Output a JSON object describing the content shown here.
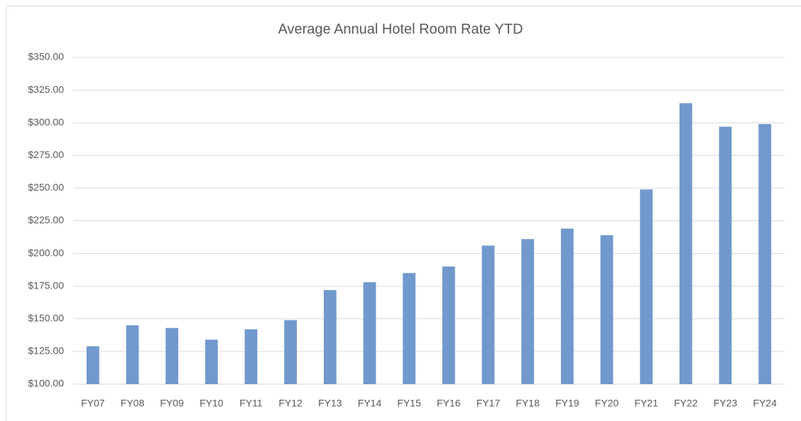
{
  "chart_data": {
    "type": "bar",
    "title": "Average Annual Hotel Room Rate YTD",
    "categories": [
      "FY07",
      "FY08",
      "FY09",
      "FY10",
      "FY11",
      "FY12",
      "FY13",
      "FY14",
      "FY15",
      "FY16",
      "FY17",
      "FY18",
      "FY19",
      "FY20",
      "FY21",
      "FY22",
      "FY23",
      "FY24"
    ],
    "values": [
      129,
      145,
      143,
      134,
      142,
      149,
      172,
      178,
      185,
      190,
      206,
      211,
      219,
      214,
      249,
      315,
      297,
      299
    ],
    "color": "#7199cd",
    "ylim": [
      100,
      350
    ],
    "yticks": [
      {
        "value": 100,
        "label": "$100.00"
      },
      {
        "value": 125,
        "label": "$125.00"
      },
      {
        "value": 150,
        "label": "$150.00"
      },
      {
        "value": 175,
        "label": "$175.00"
      },
      {
        "value": 200,
        "label": "$200.00"
      },
      {
        "value": 225,
        "label": "$225.00"
      },
      {
        "value": 250,
        "label": "$250.00"
      },
      {
        "value": 275,
        "label": "$275.00"
      },
      {
        "value": 300,
        "label": "$300.00"
      },
      {
        "value": 325,
        "label": "$325.00"
      },
      {
        "value": 350,
        "label": "$350.00"
      }
    ],
    "grid": true
  }
}
